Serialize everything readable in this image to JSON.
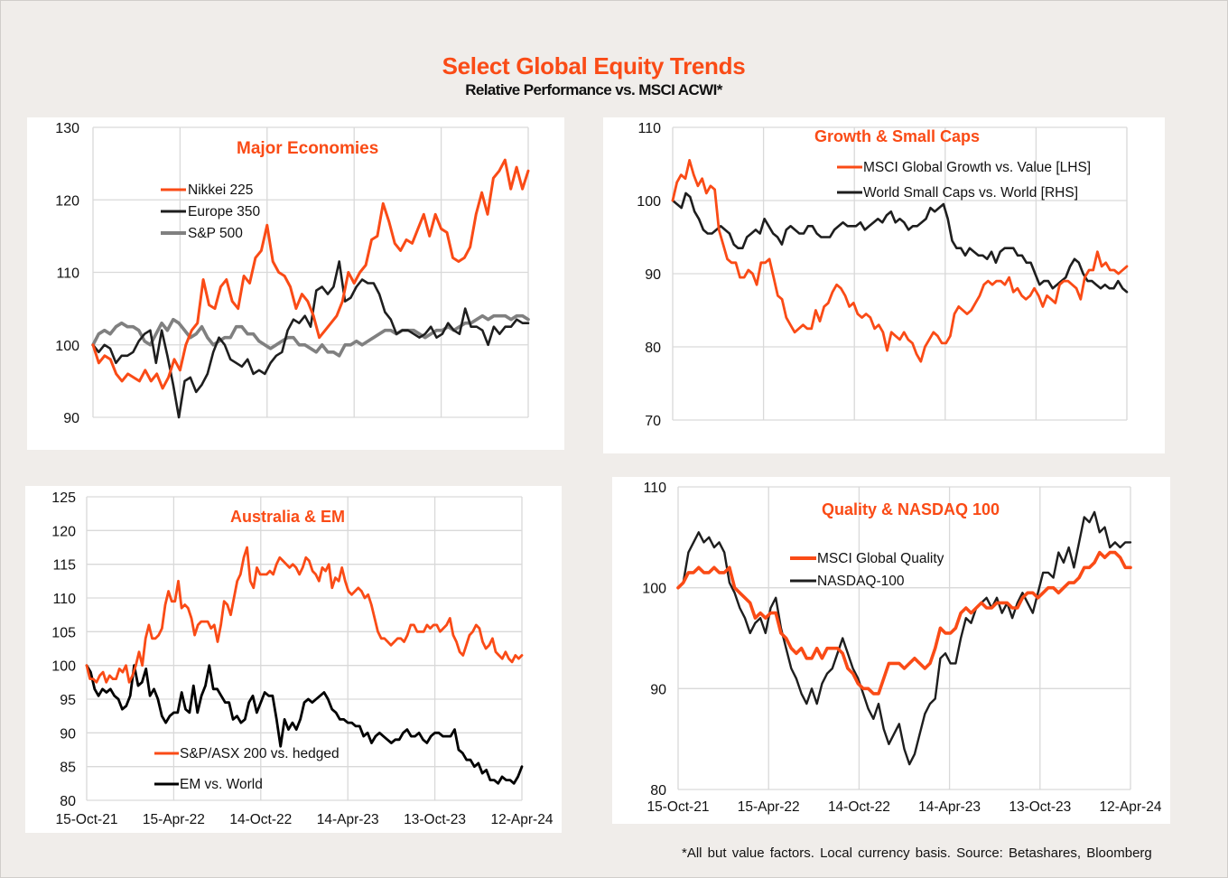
{
  "header": {
    "title": "Select Global Equity Trends",
    "subtitle": "Relative Performance vs. MSCI ACWI*"
  },
  "footnote": "*All but value factors. Local currency basis.  Source: Betashares, Bloomberg",
  "colors": {
    "accent": "#fa4b16",
    "black": "#1e1e1e",
    "grey": "#808080",
    "background": "#f0edea"
  },
  "chart_data": [
    {
      "id": "major",
      "type": "line",
      "title": "Major Economies",
      "xlabel": "",
      "ylabel": "",
      "x_range": [
        "15-Oct-21",
        "12-Apr-24"
      ],
      "xticks": [],
      "ylim": [
        90,
        130
      ],
      "yticks": [
        90,
        100,
        110,
        120,
        130
      ],
      "grid": true,
      "legend": "top-left",
      "series": [
        {
          "name": "Nikkei 225",
          "color": "#fa4b16",
          "values": [
            100,
            97.5,
            98.5,
            98,
            96,
            95,
            96,
            95.5,
            95,
            96.5,
            95,
            96,
            94,
            95.5,
            98,
            96.5,
            100,
            102,
            103,
            109,
            105.5,
            105,
            108,
            109,
            106,
            105,
            109.5,
            108.5,
            112,
            113,
            116.5,
            111.5,
            110,
            109.5,
            108,
            105,
            107,
            106,
            104,
            101,
            102,
            103,
            104,
            106,
            110,
            108.5,
            110,
            111,
            114.5,
            115,
            119.5,
            117,
            114,
            113,
            114.5,
            114,
            116,
            118,
            115,
            118,
            116,
            115.5,
            112,
            111.5,
            112,
            113.5,
            118,
            121,
            118,
            123,
            124,
            125.5,
            121.5,
            124.5,
            121.5,
            124
          ]
        },
        {
          "name": "Europe 350",
          "color": "#1e1e1e",
          "values": [
            100,
            99,
            100,
            99.5,
            97.5,
            98.5,
            98.5,
            99,
            100.5,
            101.5,
            102,
            97.5,
            102,
            98.5,
            94.5,
            90,
            95,
            95.5,
            93.5,
            94.5,
            96,
            99,
            101,
            100,
            98,
            97.5,
            97,
            98,
            96,
            96.5,
            96,
            97.5,
            98.5,
            99,
            102,
            103.5,
            103,
            104,
            102.5,
            107.5,
            108,
            107,
            108,
            111.5,
            106,
            106.5,
            108,
            109,
            108.5,
            108.5,
            107,
            104.5,
            103.5,
            101.5,
            102,
            102,
            101.5,
            101,
            101.5,
            102.5,
            101,
            101.5,
            103,
            102,
            101.5,
            105,
            102.5,
            102.5,
            102,
            100,
            102.5,
            101.5,
            102.5,
            102.5,
            103.5,
            103,
            103
          ]
        },
        {
          "name": "S&P 500",
          "color": "#808080",
          "values": [
            100,
            101.5,
            102,
            101.5,
            102.5,
            103,
            102.5,
            102.5,
            102,
            100.5,
            100,
            101.5,
            103,
            102,
            103.5,
            103,
            102,
            101,
            101.5,
            102.5,
            101,
            100,
            100.5,
            101,
            101,
            102.5,
            102.5,
            101.5,
            101.5,
            100.5,
            100,
            99.5,
            100,
            100.5,
            101,
            101,
            100,
            100,
            99.5,
            99,
            100,
            99,
            99,
            98.5,
            100,
            100,
            100.5,
            100,
            100.5,
            101,
            101.5,
            102,
            102,
            101.5,
            102,
            102,
            102,
            101.5,
            101,
            101.5,
            102,
            102,
            102.5,
            102,
            102.5,
            103,
            103,
            103.5,
            104,
            103.5,
            104,
            104,
            104,
            103.5,
            104,
            104,
            103.5
          ]
        }
      ]
    },
    {
      "id": "growth",
      "type": "line",
      "title": "Growth & Small Caps",
      "xlabel": "",
      "ylabel": "",
      "x_range": [
        "15-Oct-21",
        "12-Apr-24"
      ],
      "xticks": [],
      "ylim": [
        70,
        110
      ],
      "yticks": [
        70,
        80,
        90,
        100,
        110
      ],
      "grid": true,
      "legend": "top-right",
      "series": [
        {
          "name": "MSCI Global Growth vs. Value [LHS]",
          "color": "#fa4b16",
          "values": [
            100,
            102.5,
            103.5,
            103,
            105.5,
            103.5,
            102,
            103,
            101,
            102,
            101.5,
            96,
            94,
            92,
            91.5,
            91.5,
            89.5,
            89.5,
            90.5,
            90,
            88.5,
            91.5,
            91.5,
            92,
            89.5,
            87,
            86.5,
            84,
            83,
            82,
            82.5,
            83,
            82.5,
            82.5,
            85,
            83.5,
            85.5,
            86,
            87.5,
            88.5,
            88,
            87,
            85.5,
            86,
            84.5,
            84,
            84.5,
            84,
            82.5,
            83,
            82,
            79.5,
            82,
            81.5,
            81,
            82,
            81,
            80.5,
            79,
            78,
            80,
            81,
            82,
            81.5,
            80.5,
            80.5,
            81.5,
            84.5,
            85.5,
            85,
            84.5,
            85,
            86,
            87,
            88.5,
            89,
            88.5,
            89,
            89,
            88.5,
            89.5,
            87.5,
            88,
            87,
            86.5,
            87,
            88,
            87,
            85.5,
            87,
            86.5,
            86,
            88.5,
            89,
            89,
            88.5,
            88,
            86.5,
            89.5,
            90.5,
            90.5,
            93,
            91,
            91.5,
            90.5,
            90.5,
            90,
            90.5,
            91
          ]
        },
        {
          "name": "World Small Caps vs. World [RHS]",
          "color": "#1e1e1e",
          "values": [
            100,
            99.5,
            99,
            101,
            100.5,
            98.5,
            97.5,
            96,
            95.5,
            95.5,
            96,
            96.5,
            96,
            95.5,
            94,
            93.5,
            93.5,
            95,
            95.5,
            96,
            95.5,
            97.5,
            96.5,
            95.5,
            95,
            94,
            96,
            96.5,
            96,
            95.5,
            95.5,
            96.5,
            96.5,
            95.5,
            95,
            95,
            95,
            96,
            96.5,
            97,
            96.5,
            96.5,
            96.5,
            97,
            96,
            96.5,
            97,
            97.5,
            97,
            98,
            98.5,
            97,
            97.5,
            97,
            96,
            96.5,
            96.5,
            97,
            97.5,
            99,
            98.5,
            99,
            99.5,
            97.5,
            94.5,
            93.5,
            93.5,
            92.5,
            93.5,
            93,
            92.5,
            92.5,
            92,
            93,
            91.5,
            93,
            93.5,
            93.5,
            93.5,
            92.5,
            92.5,
            91.5,
            91.5,
            90,
            88.5,
            89,
            89,
            88,
            88.5,
            89,
            89.5,
            91,
            92,
            91.5,
            90,
            89,
            89,
            88.5,
            88,
            88.5,
            88,
            88,
            89,
            88,
            87.5
          ]
        }
      ]
    },
    {
      "id": "australia",
      "type": "line",
      "title": "Australia & EM",
      "xlabel": "",
      "ylabel": "",
      "xticks": [
        "15-Oct-21",
        "15-Apr-22",
        "14-Oct-22",
        "14-Apr-23",
        "13-Oct-23",
        "12-Apr-24"
      ],
      "ylim": [
        80,
        125
      ],
      "yticks": [
        80,
        85,
        90,
        95,
        100,
        105,
        110,
        115,
        120,
        125
      ],
      "grid": true,
      "legend": "bottom-left",
      "series": [
        {
          "name": "S&P/ASX 200 vs. hedged",
          "color": "#fa4b16",
          "values": [
            100,
            98,
            98,
            97.5,
            98.5,
            99,
            97.5,
            98.5,
            98,
            98,
            99.5,
            99,
            100,
            97.5,
            98.5,
            100,
            102,
            100,
            104,
            106,
            104,
            104,
            104.5,
            105.5,
            109,
            111,
            109.5,
            109.5,
            112.5,
            108.5,
            109,
            108.5,
            107,
            104.5,
            106,
            106.5,
            106.5,
            106.5,
            105.5,
            106,
            103.5,
            106,
            109.5,
            109,
            107.5,
            110,
            112.5,
            113.5,
            116,
            117.5,
            112.5,
            111.5,
            114.5,
            113.5,
            113.5,
            113.5,
            114,
            113.5,
            115,
            116,
            115.5,
            115,
            114.5,
            115,
            114.5,
            113.5,
            114.5,
            116,
            115.5,
            114,
            113.5,
            112.5,
            114.5,
            114,
            115,
            111.5,
            113,
            112.5,
            114.5,
            112.5,
            111,
            110.5,
            111,
            111.5,
            111,
            110,
            110.5,
            109,
            107,
            105,
            104,
            104,
            103.5,
            103,
            103.5,
            104,
            104,
            103.5,
            104.5,
            106,
            106,
            105,
            105,
            105,
            106,
            105.5,
            106,
            106,
            105,
            105.5,
            106,
            107,
            104.5,
            103.5,
            102,
            101.5,
            103,
            104.5,
            105,
            106,
            105.5,
            103.5,
            102.5,
            103,
            104,
            102,
            101.5,
            101,
            102,
            101,
            100.5,
            101.5,
            101,
            101.5
          ]
        },
        {
          "name": "EM vs. World",
          "color": "#000000",
          "values": [
            100,
            99,
            96.5,
            95.5,
            96.5,
            96,
            96.5,
            95.5,
            95,
            93.5,
            94,
            95.5,
            100,
            97,
            97.5,
            99.5,
            95.5,
            96.5,
            95,
            92.5,
            91.5,
            92.5,
            93,
            93,
            96,
            93.5,
            93,
            97,
            93,
            95.5,
            97,
            100,
            96.5,
            96.5,
            95.5,
            94.5,
            94.5,
            92,
            92.5,
            91.5,
            92,
            94.5,
            95.5,
            93,
            94.5,
            96,
            95.5,
            95.5,
            92,
            88,
            92,
            90.5,
            91.5,
            90.5,
            92,
            94.5,
            95,
            94.5,
            95,
            95.5,
            96,
            95,
            93.5,
            93,
            92,
            92,
            91.5,
            91.5,
            91,
            91,
            89.5,
            90,
            88.5,
            89.5,
            90,
            89.5,
            89,
            88.5,
            89,
            89,
            90,
            90.5,
            89.5,
            89.5,
            90,
            89,
            88.5,
            89.5,
            90,
            90,
            89.5,
            89.5,
            89.5,
            90.5,
            87.5,
            87,
            86,
            86,
            85,
            85.5,
            84,
            84.5,
            83,
            83,
            82.5,
            83.5,
            83,
            83,
            82.5,
            83.5,
            85
          ]
        }
      ]
    },
    {
      "id": "quality",
      "type": "line",
      "title": "Quality & NASDAQ 100",
      "xlabel": "",
      "ylabel": "",
      "xticks": [
        "15-Oct-21",
        "15-Apr-22",
        "14-Oct-22",
        "14-Apr-23",
        "13-Oct-23",
        "12-Apr-24"
      ],
      "ylim": [
        80,
        110
      ],
      "yticks": [
        80,
        90,
        100,
        110
      ],
      "grid": true,
      "legend": "top-right",
      "series": [
        {
          "name": "MSCI Global Quality",
          "color": "#fa4b16",
          "values": [
            100,
            100.5,
            101.5,
            101.5,
            102,
            101.5,
            101.5,
            102,
            101.5,
            101.5,
            102,
            100,
            99.5,
            99,
            98.5,
            97,
            97.5,
            97,
            97.5,
            97.5,
            95.5,
            95,
            94,
            93.5,
            94,
            93,
            93,
            94,
            93,
            94,
            94,
            94,
            93.5,
            92,
            91.5,
            90.5,
            90,
            90,
            89.5,
            89.5,
            91,
            92.5,
            92.5,
            92.5,
            92,
            92.5,
            93,
            92.5,
            92,
            92.5,
            94,
            96,
            95.5,
            95.5,
            96,
            97.5,
            98,
            97.5,
            98,
            98.5,
            98,
            98,
            98.5,
            98.5,
            98.5,
            98,
            98,
            99,
            99.5,
            99.5,
            99,
            99.5,
            100,
            100,
            99.5,
            100,
            100.5,
            100.5,
            101,
            102,
            102,
            102.5,
            103.5,
            103,
            103.5,
            103.5,
            103,
            102,
            102
          ]
        },
        {
          "name": "NASDAQ-100",
          "color": "#1e1e1e",
          "values": [
            100,
            100.5,
            103.5,
            104.5,
            105.5,
            104.5,
            105,
            104,
            104.5,
            103.5,
            100.5,
            99.5,
            98,
            97,
            95.5,
            96.5,
            97,
            95.5,
            98,
            99,
            96,
            94,
            92,
            91,
            89.5,
            88.5,
            90,
            88.5,
            90.5,
            91.5,
            92,
            93.5,
            95,
            93.5,
            92,
            91,
            89.5,
            88,
            87,
            88.5,
            86,
            84.5,
            85.5,
            86.5,
            84,
            82.5,
            83.5,
            85.5,
            87.5,
            88.5,
            89,
            93,
            93.5,
            92.5,
            92.5,
            95,
            97,
            96.5,
            98,
            98.5,
            99,
            98,
            99,
            97.5,
            98.5,
            97,
            98.5,
            99.5,
            98.5,
            97.5,
            99.5,
            101.5,
            101.5,
            101,
            103.5,
            102.5,
            104,
            102,
            104.5,
            107,
            106.5,
            107.5,
            105.5,
            106,
            104,
            104.5,
            104,
            104.5,
            104.5
          ]
        }
      ]
    }
  ]
}
